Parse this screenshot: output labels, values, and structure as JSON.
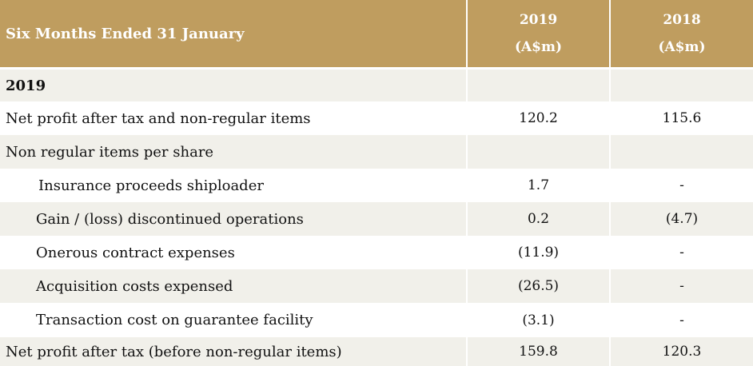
{
  "header": {
    "label": "Six Months Ended 31 January",
    "col1_year": "2019",
    "col1_unit": "(A$m)",
    "col2_year": "2018",
    "col2_unit": "(A$m)"
  },
  "rows": [
    {
      "label": "2019",
      "v2019": "",
      "v2018": ""
    },
    {
      "label": "Net profit after tax and non-regular items",
      "v2019": "120.2",
      "v2018": "115.6"
    },
    {
      "label": "Non regular items per share",
      "v2019": "",
      "v2018": ""
    },
    {
      "label": "Insurance proceeds shiploader",
      "v2019": "1.7",
      "v2018": "-"
    },
    {
      "label": "Gain / (loss) discontinued operations",
      "v2019": "0.2",
      "v2018": "(4.7)"
    },
    {
      "label": "Onerous contract expenses",
      "v2019": "(11.9)",
      "v2018": "-"
    },
    {
      "label": "Acquisition costs expensed",
      "v2019": "(26.5)",
      "v2018": "-"
    },
    {
      "label": "Transaction cost on guarantee facility",
      "v2019": "(3.1)",
      "v2018": "-"
    },
    {
      "label": "Net profit after tax (before non-regular items)",
      "v2019": "159.8",
      "v2018": "120.3"
    }
  ]
}
